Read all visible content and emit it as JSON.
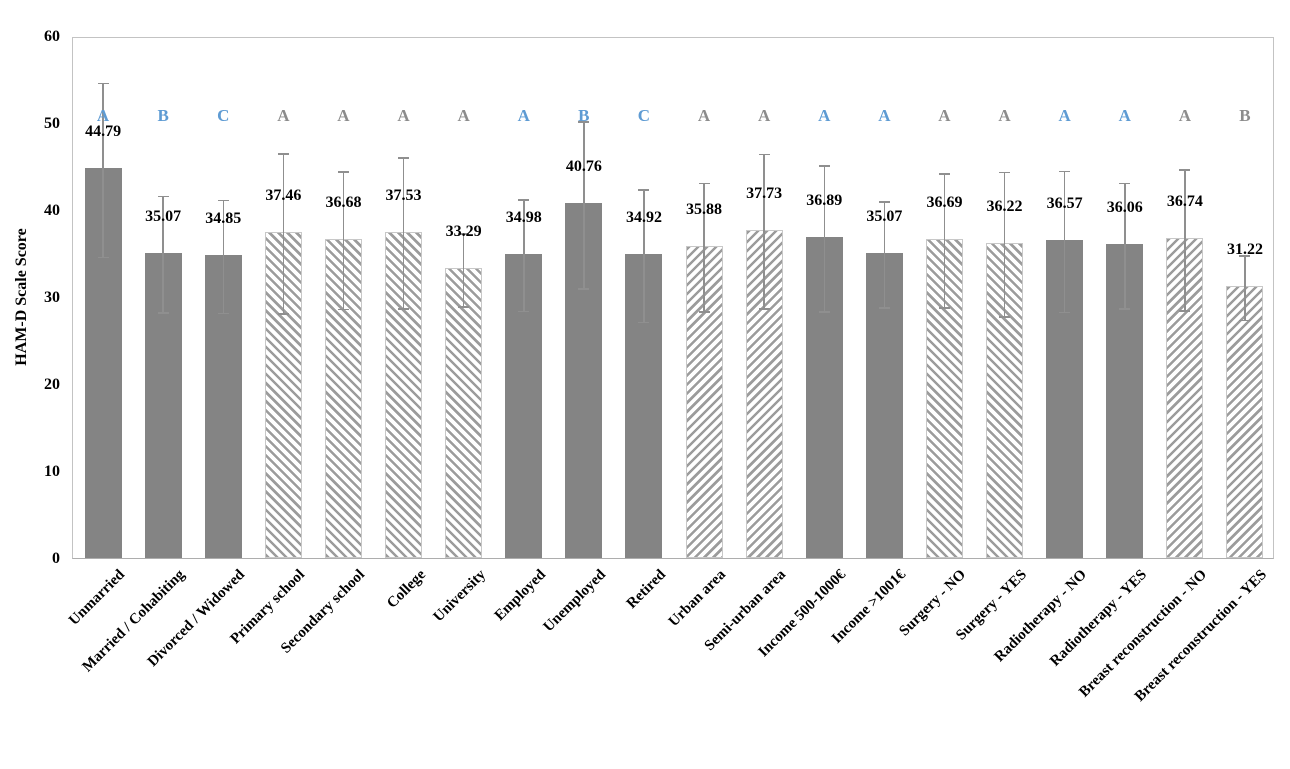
{
  "chart_data": {
    "type": "bar",
    "title": "",
    "xlabel": "",
    "ylabel": "HAM-D Scale Score",
    "ylim": [
      0,
      60
    ],
    "yticks": [
      0,
      10,
      20,
      30,
      40,
      50,
      60
    ],
    "grid": false,
    "legend": false,
    "categories": [
      "Unmarried",
      "Married / Cohabiting",
      "Divorced / Widowed",
      "Primary school",
      "Secondary school",
      "College",
      "University",
      "Employed",
      "Unemployed",
      "Retired",
      "Urban area",
      "Semi-urban area",
      "Income 500-1000€",
      "Income >1001€",
      "Surgery - NO",
      "Surgery - YES",
      "Radiotherapy - NO",
      "Radiotherapy - YES",
      "Breast reconstruction - NO",
      "Breast reconstruction - YES"
    ],
    "values": [
      44.79,
      35.07,
      34.85,
      37.46,
      36.68,
      37.53,
      33.29,
      34.98,
      40.76,
      34.92,
      35.88,
      37.73,
      36.89,
      35.07,
      36.69,
      36.22,
      36.57,
      36.06,
      36.74,
      31.22
    ],
    "errors_upper": [
      10.0,
      6.7,
      6.5,
      9.2,
      7.9,
      8.7,
      4.2,
      6.4,
      9.6,
      7.6,
      7.4,
      8.9,
      8.4,
      6.1,
      7.7,
      8.3,
      8.1,
      7.2,
      8.1,
      3.7
    ],
    "errors_lower": [
      10.0,
      6.7,
      6.5,
      9.2,
      7.9,
      8.7,
      4.2,
      6.4,
      9.6,
      7.6,
      7.4,
      8.9,
      8.4,
      6.1,
      7.7,
      8.3,
      8.1,
      7.2,
      8.1,
      3.7
    ],
    "value_labels": [
      "44.79",
      "35.07",
      "34.85",
      "37.46",
      "36.68",
      "37.53",
      "33.29",
      "34.98",
      "40.76",
      "34.92",
      "35.88",
      "37.73",
      "36.89",
      "35.07",
      "36.69",
      "36.22",
      "36.57",
      "36.06",
      "36.74",
      "31.22"
    ],
    "significance_letters": [
      "A",
      "B",
      "C",
      "A",
      "A",
      "A",
      "A",
      "A",
      "B",
      "C",
      "A",
      "A",
      "A",
      "A",
      "A",
      "A",
      "A",
      "A",
      "A",
      "B"
    ],
    "letter_colors": [
      "blue",
      "blue",
      "blue",
      "gray",
      "gray",
      "gray",
      "gray",
      "blue",
      "blue",
      "blue",
      "gray",
      "gray",
      "blue",
      "blue",
      "gray",
      "gray",
      "blue",
      "blue",
      "gray",
      "gray"
    ],
    "bar_fill_styles": [
      "solid",
      "solid",
      "solid",
      "hatch-back",
      "hatch-back",
      "hatch-back",
      "hatch-back",
      "solid",
      "solid",
      "solid",
      "hatch-fwd",
      "hatch-fwd",
      "solid",
      "solid",
      "hatch-back",
      "hatch-back",
      "solid",
      "solid",
      "hatch-fwd",
      "hatch-fwd"
    ]
  },
  "style": {
    "bar_solid_color": "#848484",
    "hatch_stripe_color": "#9c9c9c",
    "error_bar_color": "#8f8f8f",
    "letter_blue": "#5e9bd3",
    "letter_gray": "#8c8c8c",
    "plot_border_color": "#c3c3c3",
    "text_color": "#000000"
  }
}
